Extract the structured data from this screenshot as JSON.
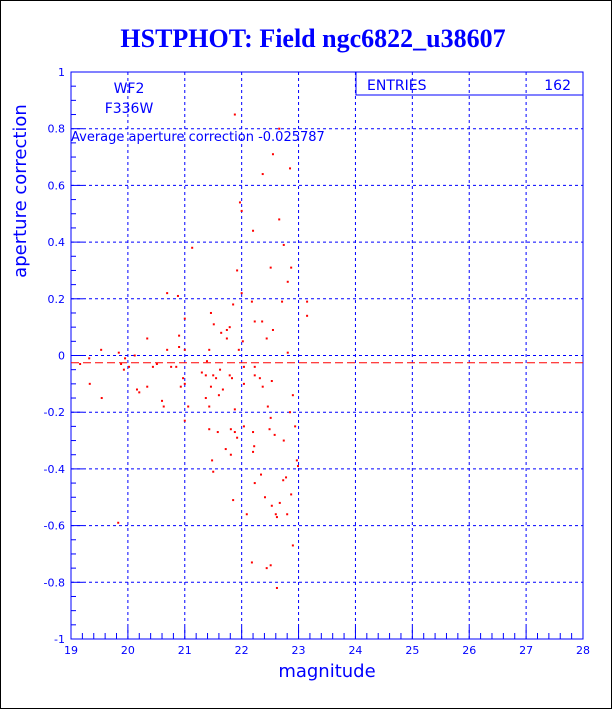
{
  "chart_data": {
    "type": "scatter",
    "title": "HSTPHOT: Field ngc6822_u38607",
    "xlabel": "magnitude",
    "ylabel": "aperture correction",
    "xlim": [
      19,
      28
    ],
    "ylim": [
      -1,
      1
    ],
    "grid": true,
    "x_ticks": [
      "19",
      "20",
      "21",
      "22",
      "23",
      "24",
      "25",
      "26",
      "27",
      "28"
    ],
    "y_ticks": [
      "-1",
      "-0.8",
      "-0.6",
      "-0.4",
      "-0.2",
      "0",
      "0.2",
      "0.4",
      "0.6",
      "0.8",
      "1"
    ],
    "annotations": {
      "chip": "WF2",
      "filter": "F336W",
      "average_label": "Average aperture correction",
      "average_value": "-0.025787"
    },
    "average_line": -0.025787,
    "stats": {
      "label": "ENTRIES",
      "value": "162"
    },
    "colors": {
      "axis": "#0000ff",
      "points": "#ff0000"
    },
    "points": [
      [
        21.88,
        0.85
      ],
      [
        22.66,
        0.8
      ],
      [
        22.55,
        0.71
      ],
      [
        22.85,
        0.66
      ],
      [
        22.37,
        0.64
      ],
      [
        21.97,
        0.54
      ],
      [
        22.0,
        0.51
      ],
      [
        22.66,
        0.48
      ],
      [
        21.13,
        0.38
      ],
      [
        22.2,
        0.44
      ],
      [
        22.74,
        0.39
      ],
      [
        22.87,
        0.31
      ],
      [
        21.92,
        0.3
      ],
      [
        22.51,
        0.31
      ],
      [
        20.69,
        0.22
      ],
      [
        20.88,
        0.21
      ],
      [
        22.0,
        0.22
      ],
      [
        22.81,
        0.26
      ],
      [
        23.15,
        0.19
      ],
      [
        22.71,
        0.19
      ],
      [
        22.18,
        0.19
      ],
      [
        21.85,
        0.18
      ],
      [
        23.15,
        0.14
      ],
      [
        21.46,
        0.15
      ],
      [
        21.0,
        0.13
      ],
      [
        21.51,
        0.11
      ],
      [
        22.23,
        0.12
      ],
      [
        22.36,
        0.12
      ],
      [
        21.79,
        0.1
      ],
      [
        21.64,
        0.08
      ],
      [
        21.74,
        0.09
      ],
      [
        22.55,
        0.09
      ],
      [
        20.9,
        0.07
      ],
      [
        20.34,
        0.06
      ],
      [
        21.74,
        0.06
      ],
      [
        22.44,
        0.06
      ],
      [
        22.02,
        0.05
      ],
      [
        20.9,
        0.03
      ],
      [
        19.53,
        0.02
      ],
      [
        20.69,
        0.02
      ],
      [
        21.0,
        0.02
      ],
      [
        21.95,
        0.02
      ],
      [
        21.43,
        0.02
      ],
      [
        19.84,
        0.01
      ],
      [
        22.81,
        0.01
      ],
      [
        20.12,
        0.0
      ],
      [
        19.95,
        -0.01
      ],
      [
        19.32,
        -0.01
      ],
      [
        21.39,
        -0.02
      ],
      [
        20.51,
        -0.03
      ],
      [
        19.88,
        -0.03
      ],
      [
        20.44,
        -0.04
      ],
      [
        19.16,
        -0.03
      ],
      [
        20.02,
        -0.04
      ],
      [
        22.23,
        -0.04
      ],
      [
        22.04,
        -0.04
      ],
      [
        20.76,
        -0.04
      ],
      [
        19.93,
        -0.05
      ],
      [
        20.85,
        -0.04
      ],
      [
        21.62,
        -0.05
      ],
      [
        21.3,
        -0.06
      ],
      [
        21.79,
        -0.07
      ],
      [
        21.37,
        -0.07
      ],
      [
        22.23,
        -0.07
      ],
      [
        20.97,
        -0.08
      ],
      [
        21.55,
        -0.08
      ],
      [
        21.5,
        -0.07
      ],
      [
        22.53,
        -0.09
      ],
      [
        22.32,
        -0.08
      ],
      [
        21.83,
        -0.08
      ],
      [
        19.33,
        -0.1
      ],
      [
        20.34,
        -0.11
      ],
      [
        22.04,
        -0.1
      ],
      [
        21.0,
        -0.1
      ],
      [
        20.16,
        -0.12
      ],
      [
        20.93,
        -0.11
      ],
      [
        21.46,
        -0.11
      ],
      [
        22.37,
        -0.11
      ],
      [
        21.67,
        -0.12
      ],
      [
        21.6,
        -0.14
      ],
      [
        19.54,
        -0.15
      ],
      [
        22.9,
        -0.14
      ],
      [
        21.37,
        -0.15
      ],
      [
        20.2,
        -0.13
      ],
      [
        20.6,
        -0.16
      ],
      [
        21.43,
        -0.18
      ],
      [
        22.46,
        -0.18
      ],
      [
        20.63,
        -0.18
      ],
      [
        21.88,
        -0.19
      ],
      [
        21.06,
        -0.18
      ],
      [
        22.85,
        -0.2
      ],
      [
        22.51,
        -0.22
      ],
      [
        21.0,
        -0.23
      ],
      [
        22.04,
        -0.25
      ],
      [
        21.43,
        -0.26
      ],
      [
        21.81,
        -0.26
      ],
      [
        21.88,
        -0.27
      ],
      [
        22.2,
        -0.27
      ],
      [
        22.58,
        -0.28
      ],
      [
        22.49,
        -0.26
      ],
      [
        22.94,
        -0.25
      ],
      [
        21.58,
        -0.27
      ],
      [
        21.72,
        -0.33
      ],
      [
        22.22,
        -0.32
      ],
      [
        21.92,
        -0.29
      ],
      [
        22.74,
        -0.3
      ],
      [
        21.81,
        -0.35
      ],
      [
        22.2,
        -0.34
      ],
      [
        21.48,
        -0.37
      ],
      [
        22.97,
        -0.37
      ],
      [
        22.99,
        -0.39
      ],
      [
        21.5,
        -0.41
      ],
      [
        22.34,
        -0.42
      ],
      [
        22.73,
        -0.44
      ],
      [
        22.78,
        -0.43
      ],
      [
        22.23,
        -0.45
      ],
      [
        22.87,
        -0.49
      ],
      [
        22.41,
        -0.5
      ],
      [
        22.53,
        -0.53
      ],
      [
        22.67,
        -0.52
      ],
      [
        21.85,
        -0.51
      ],
      [
        22.09,
        -0.56
      ],
      [
        22.6,
        -0.56
      ],
      [
        22.62,
        -0.57
      ],
      [
        22.8,
        -0.56
      ],
      [
        19.83,
        -0.59
      ],
      [
        22.9,
        -0.67
      ],
      [
        22.18,
        -0.73
      ],
      [
        22.44,
        -0.75
      ],
      [
        22.51,
        -0.74
      ],
      [
        22.62,
        -0.82
      ]
    ]
  }
}
